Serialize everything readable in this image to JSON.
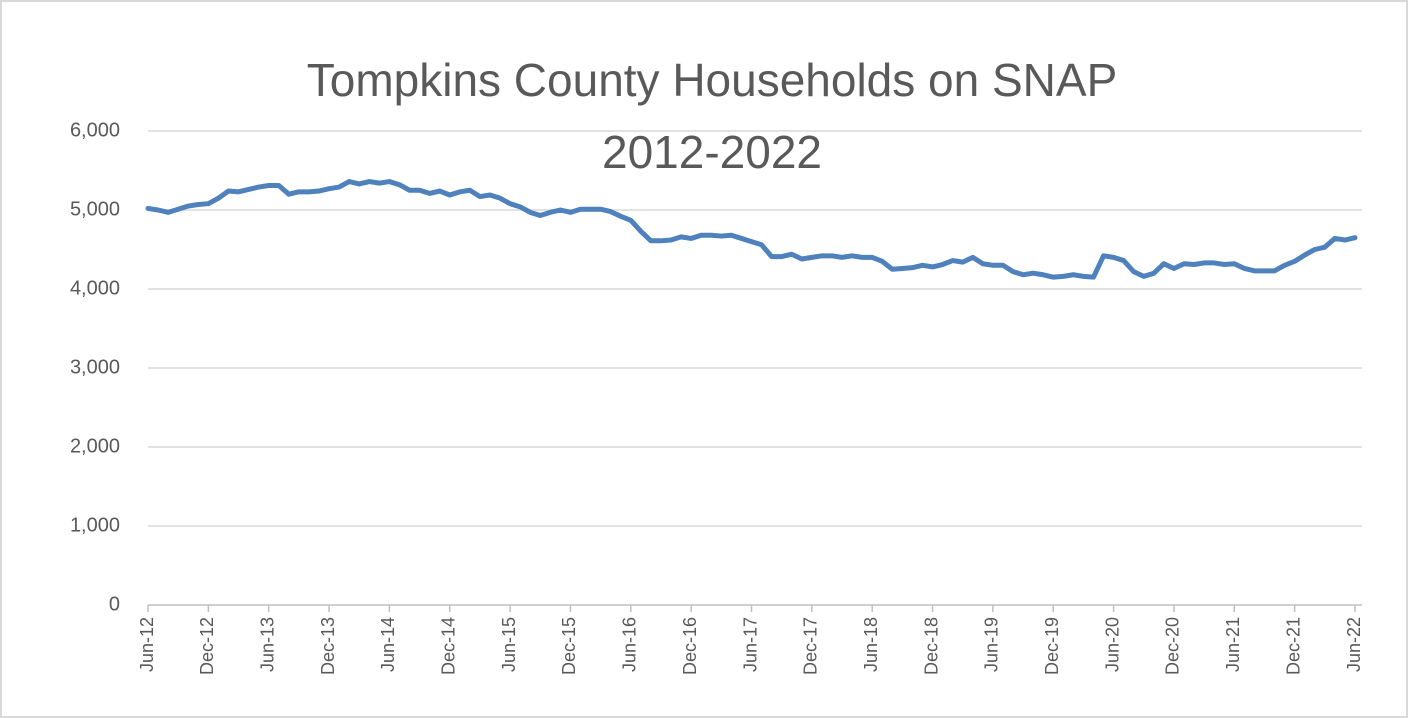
{
  "chart_data": {
    "type": "line",
    "title": [
      "Tompkins County  Households on SNAP",
      "2012-2022"
    ],
    "categories": [
      "Jun-12",
      null,
      null,
      null,
      null,
      null,
      "Dec-12",
      null,
      null,
      null,
      null,
      null,
      "Jun-13",
      null,
      null,
      null,
      null,
      null,
      "Dec-13",
      null,
      null,
      null,
      null,
      null,
      "Jun-14",
      null,
      null,
      null,
      null,
      null,
      "Dec-14",
      null,
      null,
      null,
      null,
      null,
      "Jun-15",
      null,
      null,
      null,
      null,
      null,
      "Dec-15",
      null,
      null,
      null,
      null,
      null,
      "Jun-16",
      null,
      null,
      null,
      null,
      null,
      "Dec-16",
      null,
      null,
      null,
      null,
      null,
      "Jun-17",
      null,
      null,
      null,
      null,
      null,
      "Dec-17",
      null,
      null,
      null,
      null,
      null,
      "Jun-18",
      null,
      null,
      null,
      null,
      null,
      "Dec-18",
      null,
      null,
      null,
      null,
      null,
      "Jun-19",
      null,
      null,
      null,
      null,
      null,
      "Dec-19",
      null,
      null,
      null,
      null,
      null,
      "Jun-20",
      null,
      null,
      null,
      null,
      null,
      "Dec-20",
      null,
      null,
      null,
      null,
      null,
      "Jun-21",
      null,
      null,
      null,
      null,
      null,
      "Dec-21",
      null,
      null,
      null,
      null,
      null,
      "Jun-22"
    ],
    "series": [
      {
        "name": "Households on SNAP",
        "color": "#4f81bd",
        "values": [
          5020,
          5000,
          4970,
          5010,
          5050,
          5070,
          5080,
          5150,
          5240,
          5230,
          5260,
          5290,
          5310,
          5310,
          5200,
          5230,
          5230,
          5240,
          5270,
          5290,
          5360,
          5330,
          5360,
          5340,
          5360,
          5320,
          5250,
          5250,
          5210,
          5240,
          5190,
          5230,
          5250,
          5170,
          5190,
          5150,
          5080,
          5040,
          4970,
          4930,
          4970,
          5000,
          4970,
          5010,
          5010,
          5010,
          4980,
          4920,
          4870,
          4730,
          4610,
          4610,
          4620,
          4660,
          4640,
          4680,
          4680,
          4670,
          4680,
          4640,
          4600,
          4560,
          4410,
          4410,
          4440,
          4380,
          4400,
          4420,
          4420,
          4400,
          4420,
          4400,
          4400,
          4350,
          4250,
          4260,
          4270,
          4300,
          4280,
          4310,
          4360,
          4340,
          4400,
          4320,
          4300,
          4300,
          4220,
          4180,
          4200,
          4180,
          4150,
          4160,
          4180,
          4160,
          4150,
          4420,
          4400,
          4360,
          4220,
          4160,
          4200,
          4320,
          4260,
          4320,
          4310,
          4330,
          4330,
          4310,
          4320,
          4260,
          4230,
          4230,
          4230,
          4300,
          4350,
          4430,
          4500,
          4530,
          4640,
          4620,
          4650
        ]
      }
    ],
    "ylim": [
      0,
      6000
    ],
    "yticks": [
      0,
      {
        "value": 1000,
        "label": "1,000"
      },
      {
        "value": 2000,
        "label": "2,000"
      },
      {
        "value": 3000,
        "label": "3,000"
      },
      {
        "value": 4000,
        "label": "4,000"
      },
      {
        "value": 5000,
        "label": "5,000"
      },
      {
        "value": 6000,
        "label": "6,000"
      }
    ],
    "grid": true
  }
}
